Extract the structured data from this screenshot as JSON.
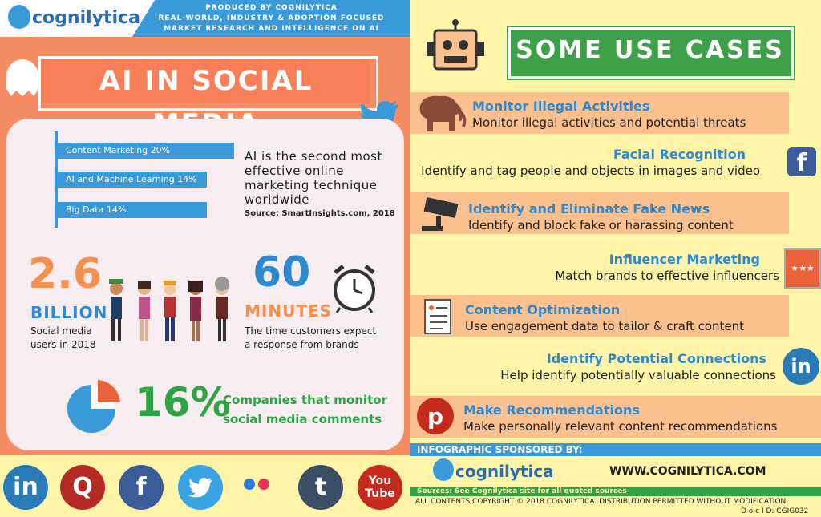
{
  "header": {
    "logo": "cognilytica",
    "produced_lines": [
      "PRODUCED BY COGNILYTICA",
      "REAL-WORLD, INDUSTRY & ADOPTION FOCUSED",
      "MARKET RESEARCH AND INTELLIGENCE ON AI"
    ]
  },
  "left": {
    "title": "AI IN SOCIAL MEDIA",
    "bars": [
      {
        "label": "Content Marketing  20%",
        "value": 20
      },
      {
        "label": "AI and Machine Learning 14%",
        "value": 14
      },
      {
        "label": "Big Data  14%",
        "value": 14
      }
    ],
    "ai_text": "AI is the second most effective online marketing technique worldwide",
    "source": "Source: SmartInsights.com, 2018",
    "stat1_number": "2.6",
    "stat1_unit": "BILLION",
    "stat1_desc1": "Social media",
    "stat1_desc2": "users in 2018",
    "stat2_number": "60",
    "stat2_unit": "MINUTES",
    "stat2_desc1": "The time customers expect",
    "stat2_desc2": "a response from brands",
    "stat3_number": "16%",
    "stat3_desc1": "Companies that monitor",
    "stat3_desc2": "social media comments"
  },
  "right": {
    "title": "SOME USE CASES",
    "use_cases": [
      {
        "heading": "Monitor Illegal Activities",
        "desc": "Monitor illegal activities and potential threats"
      },
      {
        "heading": "Facial Recognition",
        "desc": "Identify and tag people and objects in images and video"
      },
      {
        "heading": "Identify and Eliminate Fake News",
        "desc": "Identify and block fake or harassing content"
      },
      {
        "heading": "Influencer Marketing",
        "desc": "Match brands to effective influencers"
      },
      {
        "heading": "Content Optimization",
        "desc": "Use engagement data to tailor & craft content"
      },
      {
        "heading": "Identify Potential Connections",
        "desc": "Help identify potentially valuable connections"
      },
      {
        "heading": "Make Recommendations",
        "desc": "Make personally relevant content recommendations"
      }
    ],
    "sponsored": "INFOGRAPHIC SPONSORED BY:",
    "logo": "cognilytica",
    "url": "WWW.COGNILYTICA.COM",
    "sources": "Sources: See Cognilytica site for all quoted sources",
    "copyright": "ALL CONTENTS COPYRIGHT © 2018 COGNILYTICA. DISTRIBUTION PERMITTED WITHOUT MODIFICATION",
    "docid": "D o c I D:  CGIG032"
  },
  "social": [
    {
      "icon": "linkedin-icon",
      "glyph": "in",
      "color": "#2a7ab8"
    },
    {
      "icon": "quora-icon",
      "glyph": "Q",
      "color": "#b52a23"
    },
    {
      "icon": "facebook-icon",
      "glyph": "f",
      "color": "#3b5b99"
    },
    {
      "icon": "twitter-icon",
      "glyph": "",
      "color": "#3aa3e4"
    },
    {
      "icon": "flickr-icon",
      "glyph": "",
      "color": ""
    },
    {
      "icon": "tumblr-icon",
      "glyph": "t",
      "color": "#3a4e66"
    },
    {
      "icon": "youtube-icon",
      "glyph": "You Tube",
      "color": "#c42b1c"
    }
  ]
}
